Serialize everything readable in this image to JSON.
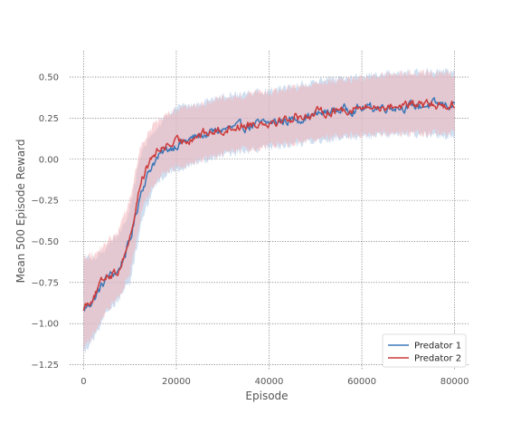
{
  "chart_data": {
    "type": "line",
    "title": "",
    "xlabel": "Episode",
    "ylabel": "Mean 500 Episode Reward",
    "xlim": [
      -3000,
      83000
    ],
    "ylim": [
      -1.28,
      0.66
    ],
    "xticks": [
      0,
      20000,
      40000,
      60000,
      80000
    ],
    "yticks": [
      -1.25,
      -1.0,
      -0.75,
      -0.5,
      -0.25,
      0.0,
      0.25,
      0.5
    ],
    "xtick_labels": [
      "0",
      "20000",
      "40000",
      "60000",
      "80000"
    ],
    "ytick_labels": [
      "−1.25",
      "−1.00",
      "−0.75",
      "−0.50",
      "−0.25",
      "0.00",
      "0.25",
      "0.50"
    ],
    "grid": true,
    "legend_position": "bottom-right",
    "series": [
      {
        "name": "Predator 1",
        "color": "#3b78b8",
        "band_color": "#a9c4e4",
        "x": [
          0,
          2500,
          5000,
          7500,
          10000,
          12500,
          15000,
          17500,
          20000,
          25000,
          30000,
          35000,
          40000,
          45000,
          50000,
          55000,
          60000,
          65000,
          70000,
          75000,
          80000
        ],
        "values": [
          -0.92,
          -0.84,
          -0.72,
          -0.68,
          -0.5,
          -0.18,
          -0.02,
          0.05,
          0.09,
          0.14,
          0.18,
          0.2,
          0.22,
          0.24,
          0.27,
          0.3,
          0.31,
          0.32,
          0.32,
          0.33,
          0.33
        ],
        "lower": [
          -1.18,
          -1.08,
          -0.92,
          -0.86,
          -0.75,
          -0.38,
          -0.18,
          -0.1,
          -0.06,
          -0.02,
          0.03,
          0.05,
          0.07,
          0.09,
          0.11,
          0.13,
          0.14,
          0.15,
          0.15,
          0.15,
          0.14
        ],
        "upper": [
          -0.6,
          -0.6,
          -0.54,
          -0.46,
          -0.3,
          0.05,
          0.16,
          0.25,
          0.31,
          0.34,
          0.38,
          0.4,
          0.42,
          0.44,
          0.47,
          0.49,
          0.5,
          0.52,
          0.53,
          0.53,
          0.53
        ]
      },
      {
        "name": "Predator 2",
        "color": "#cc3b3b",
        "band_color": "#f2b3b8",
        "x": [
          0,
          2500,
          5000,
          7500,
          10000,
          12500,
          15000,
          17500,
          20000,
          25000,
          30000,
          35000,
          40000,
          45000,
          50000,
          55000,
          60000,
          65000,
          70000,
          75000,
          80000
        ],
        "values": [
          -0.9,
          -0.82,
          -0.7,
          -0.68,
          -0.48,
          -0.12,
          0.02,
          0.08,
          0.1,
          0.15,
          0.18,
          0.21,
          0.23,
          0.25,
          0.28,
          0.3,
          0.31,
          0.32,
          0.33,
          0.33,
          0.33
        ],
        "lower": [
          -1.15,
          -1.05,
          -0.92,
          -0.84,
          -0.7,
          -0.32,
          -0.15,
          -0.08,
          -0.05,
          -0.01,
          0.04,
          0.06,
          0.08,
          0.1,
          0.12,
          0.14,
          0.15,
          0.16,
          0.16,
          0.16,
          0.16
        ],
        "upper": [
          -0.6,
          -0.58,
          -0.5,
          -0.44,
          -0.24,
          0.1,
          0.2,
          0.27,
          0.3,
          0.33,
          0.37,
          0.39,
          0.41,
          0.43,
          0.46,
          0.48,
          0.49,
          0.51,
          0.52,
          0.52,
          0.52
        ]
      }
    ]
  }
}
